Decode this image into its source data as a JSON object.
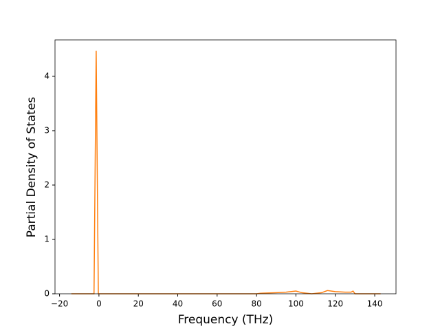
{
  "chart_data": {
    "type": "line",
    "xlabel": "Frequency (THz)",
    "ylabel": "Partial Density of States",
    "x": [
      -14,
      -2.5,
      -1.4,
      -0.3,
      10,
      40,
      80,
      82,
      90,
      95,
      100,
      103,
      108,
      113,
      116,
      120,
      125,
      128,
      129,
      130,
      135,
      143
    ],
    "series": [
      {
        "color": "#ff7f0e",
        "values": [
          0,
          0,
          4.47,
          0,
          0,
          0,
          0,
          0.01,
          0.02,
          0.03,
          0.05,
          0.02,
          0,
          0.02,
          0.06,
          0.04,
          0.03,
          0.03,
          0.05,
          0,
          0,
          0
        ]
      }
    ],
    "xlim": [
      -22.3,
      150.8
    ],
    "ylim": [
      0,
      4.67
    ],
    "xticks": [
      {
        "value": -20,
        "label": "−20"
      },
      0,
      20,
      40,
      60,
      80,
      100,
      120,
      140
    ],
    "yticks": [
      0,
      1,
      2,
      3,
      4
    ],
    "grid": false
  }
}
